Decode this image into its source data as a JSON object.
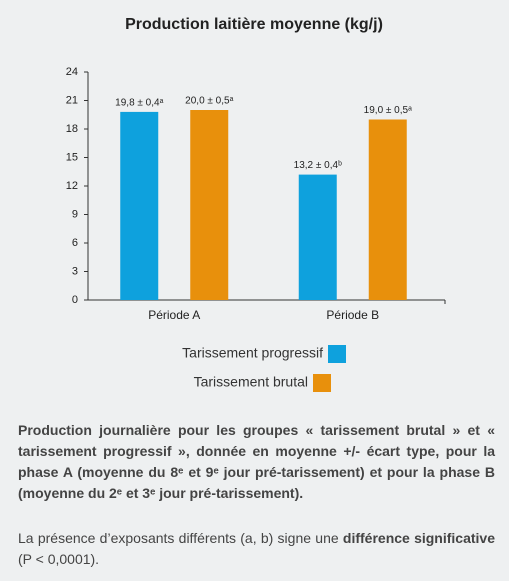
{
  "chart_data": {
    "type": "bar",
    "title": "Production laitière moyenne (kg/j)",
    "categories": [
      "Période A",
      "Période B"
    ],
    "series": [
      {
        "name": "Tarissement progressif",
        "color": "#0ea1dd",
        "values": [
          19.8,
          13.2
        ],
        "value_labels": [
          "19,8 ± 0,4ᵃ",
          "13,2 ± 0,4ᵇ"
        ]
      },
      {
        "name": "Tarissement brutal",
        "color": "#e8900c",
        "values": [
          20.0,
          19.0
        ],
        "value_labels": [
          "20,0 ± 0,5ᵃ",
          "19,0 ± 0,5ᵃ"
        ]
      }
    ],
    "ylim": [
      0,
      24
    ],
    "yticks": [
      0,
      3,
      6,
      9,
      12,
      15,
      18,
      21,
      24
    ],
    "grid": false
  },
  "caption": {
    "paragraph1": "Production journalière pour les groupes « tarissement brutal » et « tarissement progressif », donnée en moyenne +/- écart type, pour la phase A (moyenne du 8ᵉ et 9ᵉ jour pré-tarissement) et pour la phase B (moyenne du 2ᵉ et 3ᵉ jour pré-tarissement).",
    "paragraph2": [
      "La présence d’exposants différents (a, b) signe une ",
      "différence significative",
      " (P < 0,0001)."
    ]
  }
}
